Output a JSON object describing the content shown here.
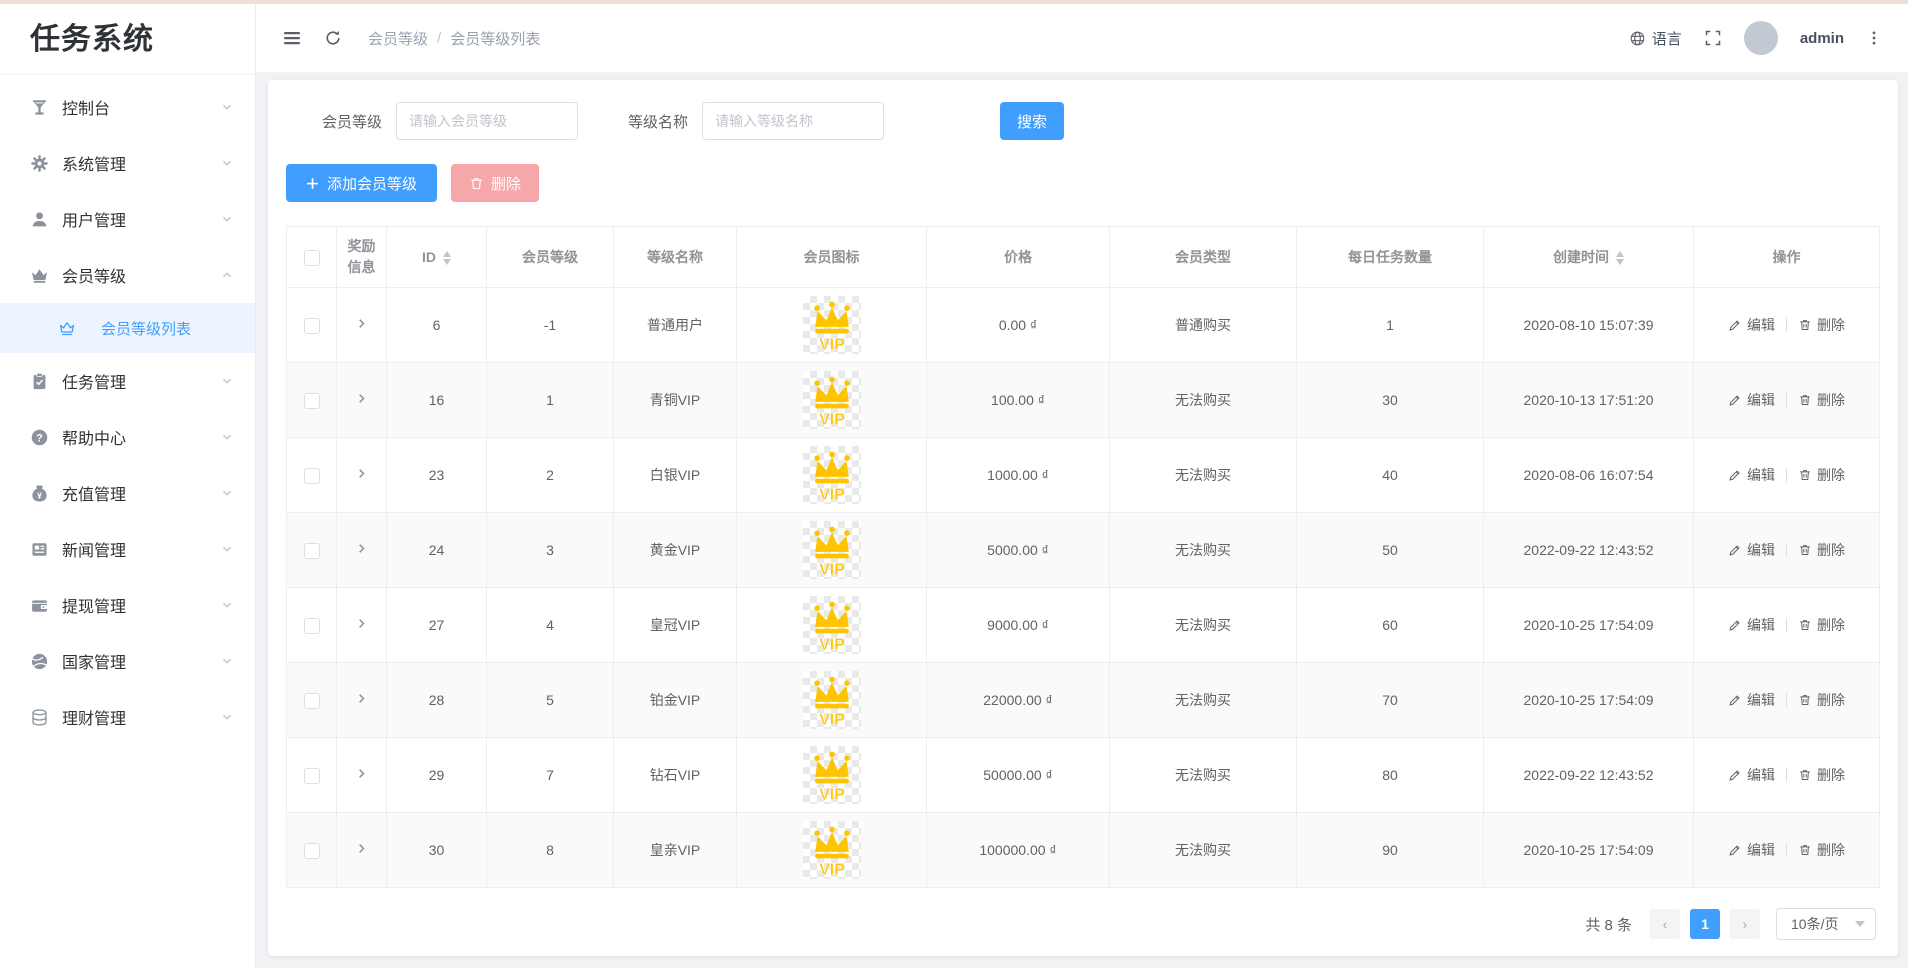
{
  "app": {
    "title": "任务系统"
  },
  "topbar": {
    "breadcrumb": [
      "会员等级",
      "会员等级列表"
    ],
    "separator": "/",
    "language_label": "语言",
    "username": "admin"
  },
  "sidebar": {
    "items": [
      {
        "key": "console",
        "label": "控制台",
        "icon": "console-icon"
      },
      {
        "key": "system",
        "label": "系统管理",
        "icon": "gear-icon"
      },
      {
        "key": "users",
        "label": "用户管理",
        "icon": "user-icon"
      },
      {
        "key": "member-level",
        "label": "会员等级",
        "icon": "crown-icon",
        "expanded": true,
        "children": [
          {
            "key": "member-level-list",
            "label": "会员等级列表",
            "icon": "crown-outline-icon",
            "active": true
          }
        ]
      },
      {
        "key": "tasks",
        "label": "任务管理",
        "icon": "clipboard-icon"
      },
      {
        "key": "help",
        "label": "帮助中心",
        "icon": "question-icon"
      },
      {
        "key": "recharge",
        "label": "充值管理",
        "icon": "moneybag-icon"
      },
      {
        "key": "news",
        "label": "新闻管理",
        "icon": "news-icon"
      },
      {
        "key": "withdraw",
        "label": "提现管理",
        "icon": "wallet-icon"
      },
      {
        "key": "country",
        "label": "国家管理",
        "icon": "globe-icon"
      },
      {
        "key": "finance",
        "label": "理财管理",
        "icon": "finance-icon"
      }
    ]
  },
  "filters": {
    "member_level_label": "会员等级",
    "member_level_placeholder": "请输入会员等级",
    "level_name_label": "等级名称",
    "level_name_placeholder": "请输入等级名称",
    "search_label": "搜索"
  },
  "actions": {
    "add_label": "添加会员等级",
    "delete_label": "删除"
  },
  "table": {
    "headers": [
      {
        "type": "checkbox"
      },
      {
        "label": "奖励信息"
      },
      {
        "label": "ID",
        "sortable": true
      },
      {
        "label": "会员等级"
      },
      {
        "label": "等级名称"
      },
      {
        "label": "会员图标"
      },
      {
        "label": "价格"
      },
      {
        "label": "会员类型"
      },
      {
        "label": "每日任务数量"
      },
      {
        "label": "创建时间",
        "sortable": true
      },
      {
        "label": "操作"
      }
    ],
    "vip_badge_text": "VIP",
    "edit_label": "编辑",
    "delete_label": "删除",
    "rows": [
      {
        "id": "6",
        "level": "-1",
        "name": "普通用户",
        "price": "0.00 ₫",
        "type": "普通购买",
        "daily": "1",
        "created": "2020-08-10 15:07:39"
      },
      {
        "id": "16",
        "level": "1",
        "name": "青铜VIP",
        "price": "100.00 ₫",
        "type": "无法购买",
        "daily": "30",
        "created": "2020-10-13 17:51:20"
      },
      {
        "id": "23",
        "level": "2",
        "name": "白银VIP",
        "price": "1000.00 ₫",
        "type": "无法购买",
        "daily": "40",
        "created": "2020-08-06 16:07:54"
      },
      {
        "id": "24",
        "level": "3",
        "name": "黄金VIP",
        "price": "5000.00 ₫",
        "type": "无法购买",
        "daily": "50",
        "created": "2022-09-22 12:43:52"
      },
      {
        "id": "27",
        "level": "4",
        "name": "皇冠VIP",
        "price": "9000.00 ₫",
        "type": "无法购买",
        "daily": "60",
        "created": "2020-10-25 17:54:09"
      },
      {
        "id": "28",
        "level": "5",
        "name": "铂金VIP",
        "price": "22000.00 ₫",
        "type": "无法购买",
        "daily": "70",
        "created": "2020-10-25 17:54:09"
      },
      {
        "id": "29",
        "level": "7",
        "name": "钻石VIP",
        "price": "50000.00 ₫",
        "type": "无法购买",
        "daily": "80",
        "created": "2022-09-22 12:43:52"
      },
      {
        "id": "30",
        "level": "8",
        "name": "皇亲VIP",
        "price": "100000.00 ₫",
        "type": "无法购买",
        "daily": "90",
        "created": "2020-10-25 17:54:09"
      }
    ]
  },
  "pagination": {
    "total_label": "共 8 条",
    "current_page": "1",
    "page_size_label": "10条/页"
  },
  "colors": {
    "accent": "#409eff",
    "danger_pink": "#f7a6a9",
    "vip_gold": "#ffc400",
    "active_menu_bg": "#ecf5ff"
  }
}
